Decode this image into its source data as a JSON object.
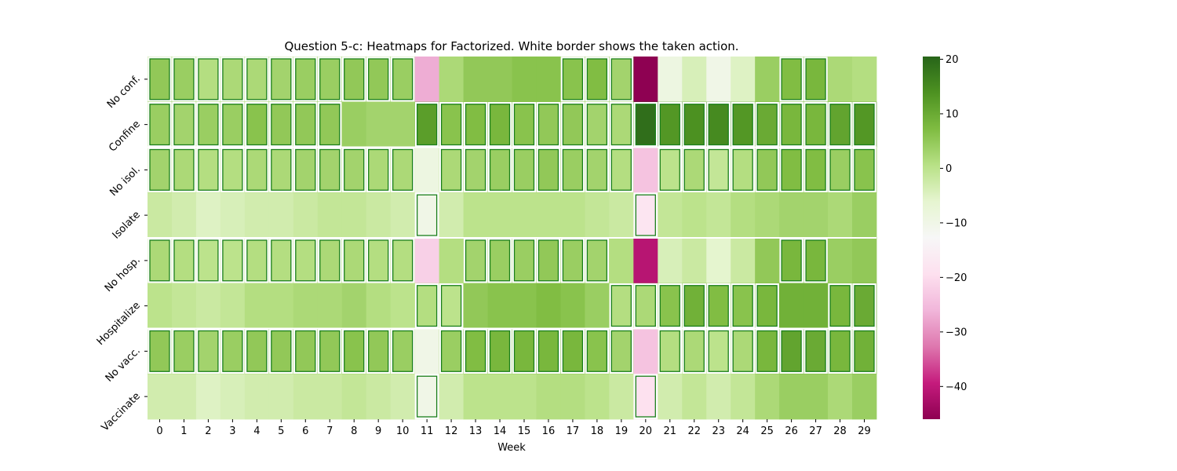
{
  "chart_data": {
    "type": "heatmap",
    "title": "Question 5-c: Heatmaps for Factorized. White border shows the taken action.",
    "xlabel": "Week",
    "ylabel": "",
    "x": [
      0,
      1,
      2,
      3,
      4,
      5,
      6,
      7,
      8,
      9,
      10,
      11,
      12,
      13,
      14,
      15,
      16,
      17,
      18,
      19,
      20,
      21,
      22,
      23,
      24,
      25,
      26,
      27,
      28,
      29
    ],
    "rows": [
      "No conf.",
      "Confine",
      "No isol.",
      "Isolate",
      "No hosp.",
      "Hospitalize",
      "No vacc.",
      "Vaccinate"
    ],
    "values": [
      [
        5,
        4,
        1,
        2,
        2,
        3,
        4,
        4,
        5,
        5,
        4,
        -27,
        2,
        5,
        5,
        6,
        6,
        6,
        7,
        3,
        -46,
        -9,
        -4,
        -10,
        -5,
        4,
        7,
        8,
        2,
        1
      ],
      [
        4,
        3,
        4,
        4,
        6,
        5,
        5,
        5,
        4,
        3,
        3,
        12,
        6,
        7,
        8,
        6,
        5,
        5,
        3,
        2,
        19,
        13,
        14,
        15,
        13,
        10,
        8,
        8,
        11,
        13
      ],
      [
        3,
        2,
        1,
        1,
        2,
        2,
        3,
        3,
        3,
        2,
        2,
        -9,
        2,
        3,
        4,
        4,
        5,
        4,
        3,
        1,
        -24,
        0,
        2,
        -1,
        1,
        5,
        7,
        7,
        4,
        6
      ],
      [
        -2,
        -3,
        -5,
        -4,
        -3,
        -3,
        -2,
        -1,
        -1,
        -2,
        -3,
        -10,
        -3,
        0,
        0,
        0,
        0,
        0,
        -1,
        -2,
        -18,
        -1,
        0,
        -1,
        1,
        2,
        3,
        3,
        2,
        4
      ],
      [
        2,
        1,
        0,
        0,
        1,
        1,
        1,
        2,
        2,
        1,
        1,
        -22,
        1,
        3,
        4,
        4,
        5,
        4,
        3,
        1,
        -41,
        -4,
        -2,
        -6,
        -2,
        5,
        8,
        8,
        4,
        5
      ],
      [
        0,
        -1,
        -2,
        -1,
        1,
        1,
        2,
        2,
        3,
        1,
        0,
        1,
        0,
        5,
        6,
        6,
        7,
        6,
        4,
        1,
        2,
        6,
        9,
        7,
        6,
        8,
        9,
        9,
        8,
        10
      ],
      [
        5,
        4,
        3,
        4,
        5,
        5,
        5,
        5,
        6,
        5,
        4,
        -10,
        4,
        7,
        8,
        8,
        8,
        8,
        6,
        3,
        -24,
        1,
        2,
        0,
        2,
        8,
        11,
        10,
        8,
        9
      ],
      [
        -3,
        -3,
        -5,
        -4,
        -3,
        -3,
        -2,
        -2,
        -1,
        -2,
        -3,
        -10,
        -3,
        0,
        0,
        0,
        1,
        1,
        0,
        -2,
        -19,
        -3,
        -1,
        -3,
        -1,
        2,
        4,
        4,
        2,
        4
      ]
    ],
    "taken_actions": [
      [
        1,
        1,
        1,
        1,
        1,
        1,
        1,
        1,
        1,
        1,
        1,
        0,
        0,
        0,
        0,
        0,
        0,
        1,
        1,
        1,
        0,
        0,
        0,
        0,
        0,
        0,
        1,
        1,
        0,
        0
      ],
      [
        1,
        1,
        1,
        1,
        1,
        1,
        1,
        1,
        0,
        0,
        0,
        1,
        1,
        1,
        1,
        1,
        1,
        1,
        1,
        1,
        1,
        1,
        1,
        1,
        1,
        1,
        1,
        1,
        1,
        1
      ],
      [
        1,
        1,
        1,
        1,
        1,
        1,
        1,
        1,
        1,
        1,
        1,
        0,
        1,
        1,
        1,
        1,
        1,
        1,
        1,
        1,
        0,
        1,
        1,
        1,
        1,
        1,
        1,
        1,
        1,
        1
      ],
      [
        0,
        0,
        0,
        0,
        0,
        0,
        0,
        0,
        0,
        0,
        0,
        1,
        0,
        0,
        0,
        0,
        0,
        0,
        0,
        0,
        1,
        0,
        0,
        0,
        0,
        0,
        0,
        0,
        0,
        0
      ],
      [
        1,
        1,
        1,
        1,
        1,
        1,
        1,
        1,
        1,
        1,
        1,
        0,
        0,
        1,
        1,
        1,
        1,
        1,
        1,
        0,
        0,
        0,
        0,
        0,
        0,
        0,
        1,
        1,
        0,
        0
      ],
      [
        0,
        0,
        0,
        0,
        0,
        0,
        0,
        0,
        0,
        0,
        0,
        1,
        1,
        0,
        0,
        0,
        0,
        0,
        0,
        1,
        1,
        1,
        1,
        1,
        1,
        1,
        0,
        0,
        1,
        1
      ],
      [
        1,
        1,
        1,
        1,
        1,
        1,
        1,
        1,
        1,
        1,
        1,
        0,
        1,
        1,
        1,
        1,
        1,
        1,
        1,
        1,
        0,
        1,
        1,
        1,
        1,
        1,
        1,
        1,
        1,
        1
      ],
      [
        0,
        0,
        0,
        0,
        0,
        0,
        0,
        0,
        0,
        0,
        0,
        1,
        0,
        0,
        0,
        0,
        0,
        0,
        0,
        0,
        1,
        0,
        0,
        0,
        0,
        0,
        0,
        0,
        0,
        0
      ]
    ],
    "colorbar": {
      "range": [
        -46,
        20.5
      ],
      "ticks": [
        20,
        10,
        0,
        -10,
        -20,
        -30,
        -40
      ],
      "colormap": "PiYG"
    },
    "grid": false
  }
}
